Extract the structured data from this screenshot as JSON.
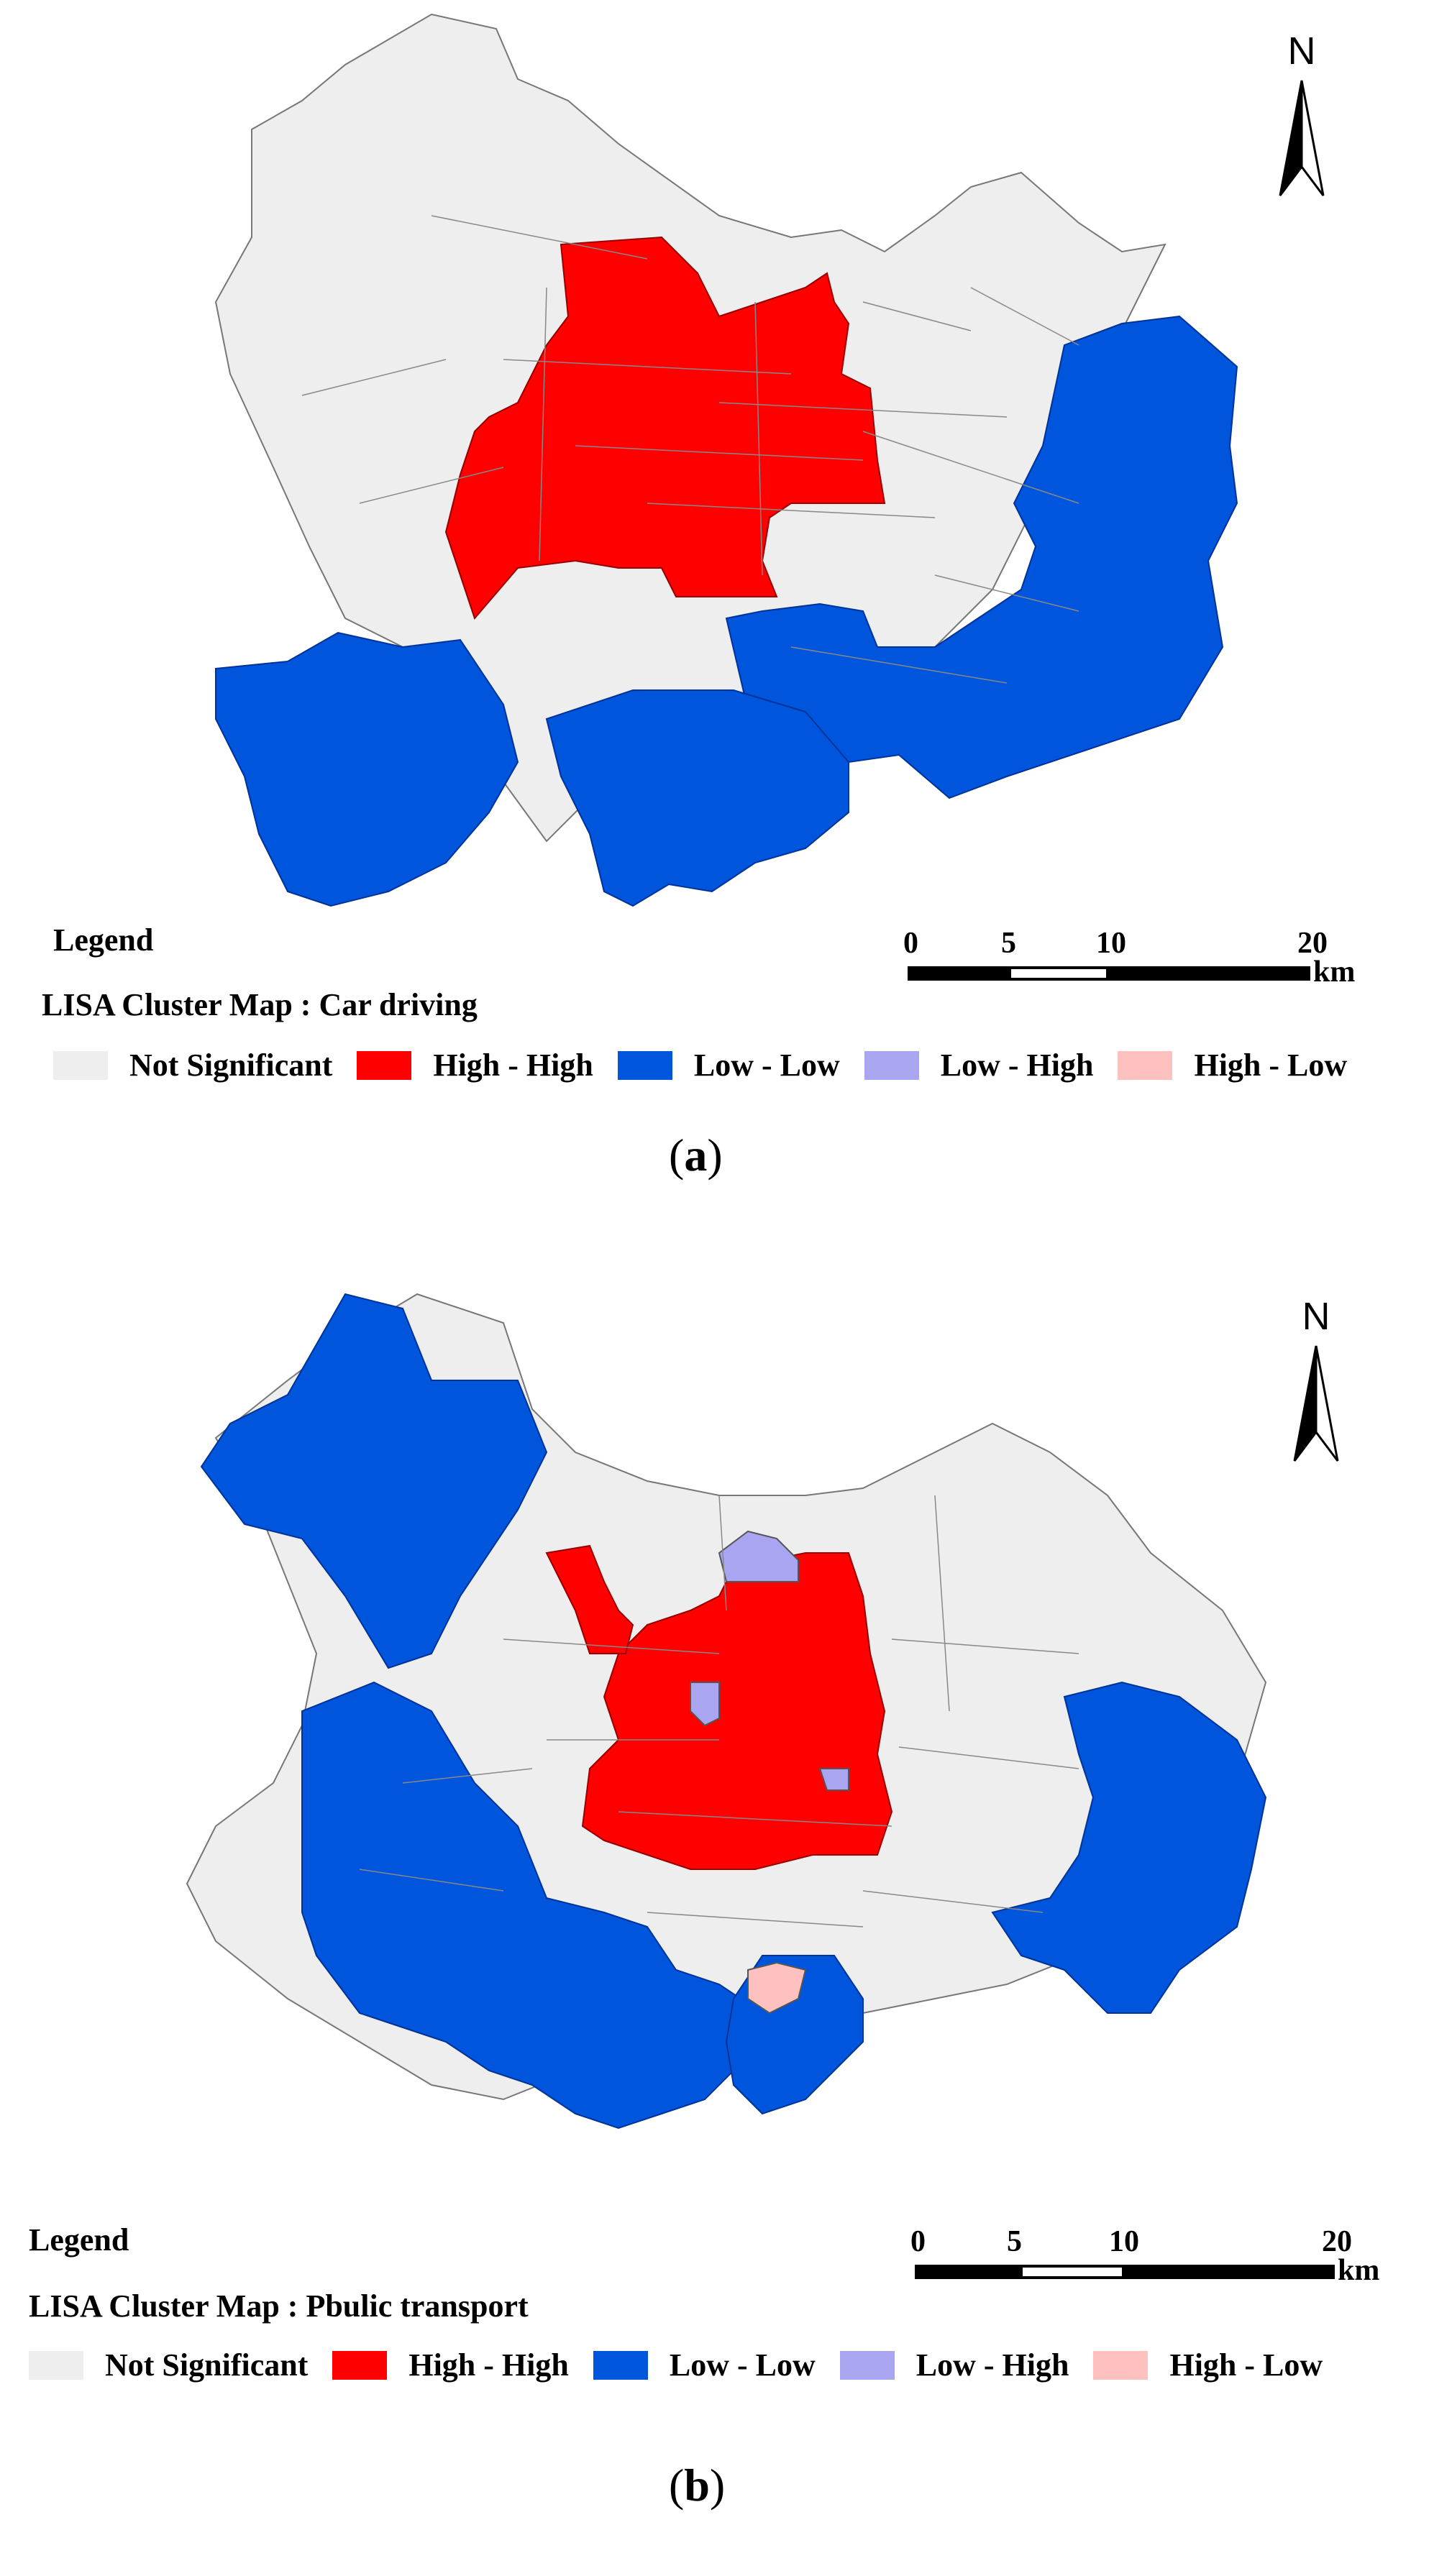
{
  "colors": {
    "not_significant": "#eeeeee",
    "high_high": "#ff0000",
    "low_low": "#0055dd",
    "low_high": "#a9a5f0",
    "high_low": "#ffc0c0",
    "border": "#777777"
  },
  "panels": [
    {
      "north_label": "N",
      "legend_title": "Legend",
      "map_title": "LISA Cluster Map : Car driving",
      "legend_items": [
        "Not Significant",
        "High - High",
        "Low - Low",
        "Low - High",
        "High - Low"
      ],
      "scale_ticks": [
        "0",
        "5",
        "10",
        "20"
      ],
      "scale_unit": "km",
      "panel_label_open": "(",
      "panel_label_letter": "a",
      "panel_label_close": ")"
    },
    {
      "north_label": "N",
      "legend_title": "Legend",
      "map_title": "LISA Cluster Map : Pbulic transport",
      "legend_items": [
        "Not Significant",
        "High - High",
        "Low - Low",
        "Low - High",
        "High - Low"
      ],
      "scale_ticks": [
        "0",
        "5",
        "10",
        "20"
      ],
      "scale_unit": "km",
      "panel_label_open": "(",
      "panel_label_letter": "b",
      "panel_label_close": ")"
    }
  ]
}
